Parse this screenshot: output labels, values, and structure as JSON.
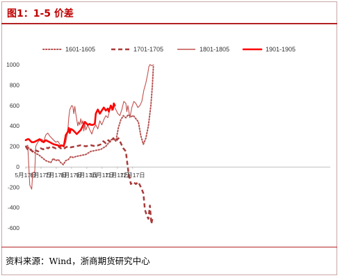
{
  "title": "图1：1-5 价差",
  "source": "资料来源：Wind，浙商期货研究中心",
  "colors": {
    "accent": "#c00000",
    "s1601": "#b5504f",
    "s1701": "#a83a3a",
    "s1801": "#c0504d",
    "s1901": "#ff0000"
  },
  "chart_data": {
    "type": "line",
    "title": "",
    "xlabel": "",
    "ylabel": "",
    "ylim": [
      -600,
      1000
    ],
    "yticks": [
      -600,
      -400,
      -200,
      0,
      200,
      400,
      600,
      800,
      1000
    ],
    "x_ticks": [
      "5月17日",
      "6月17日",
      "7月17日",
      "8月17日",
      "9月17日",
      "10月17日",
      "11月17日",
      "12月17日"
    ],
    "x_unit": "days since 5月17日",
    "legend_position": "top",
    "series": [
      {
        "name": "1601-1605",
        "style": "dotted",
        "points": [
          [
            0,
            200
          ],
          [
            5,
            190
          ],
          [
            10,
            160
          ],
          [
            15,
            150
          ],
          [
            20,
            130
          ],
          [
            25,
            120
          ],
          [
            30,
            100
          ],
          [
            35,
            80
          ],
          [
            40,
            60
          ],
          [
            45,
            50
          ],
          [
            50,
            40
          ],
          [
            55,
            80
          ],
          [
            60,
            60
          ],
          [
            65,
            70
          ],
          [
            70,
            40
          ],
          [
            75,
            20
          ],
          [
            80,
            60
          ],
          [
            85,
            70
          ],
          [
            90,
            100
          ],
          [
            95,
            90
          ],
          [
            100,
            100
          ],
          [
            110,
            110
          ],
          [
            120,
            120
          ],
          [
            130,
            150
          ],
          [
            140,
            160
          ],
          [
            150,
            170
          ],
          [
            160,
            200
          ],
          [
            170,
            260
          ],
          [
            175,
            280
          ],
          [
            180,
            250
          ],
          [
            185,
            380
          ],
          [
            190,
            460
          ],
          [
            195,
            500
          ],
          [
            200,
            480
          ],
          [
            205,
            510
          ],
          [
            210,
            490
          ],
          [
            215,
            500
          ],
          [
            220,
            470
          ],
          [
            225,
            440
          ],
          [
            230,
            300
          ],
          [
            235,
            220
          ],
          [
            240,
            280
          ],
          [
            245,
            400
          ],
          [
            250,
            600
          ],
          [
            253,
            800
          ],
          [
            255,
            980
          ]
        ]
      },
      {
        "name": "1701-1705",
        "style": "dashed",
        "points": [
          [
            0,
            200
          ],
          [
            5,
            160
          ],
          [
            10,
            170
          ],
          [
            15,
            140
          ],
          [
            20,
            160
          ],
          [
            25,
            150
          ],
          [
            30,
            180
          ],
          [
            35,
            170
          ],
          [
            40,
            190
          ],
          [
            45,
            180
          ],
          [
            50,
            200
          ],
          [
            55,
            190
          ],
          [
            60,
            180
          ],
          [
            65,
            200
          ],
          [
            70,
            180
          ],
          [
            75,
            170
          ],
          [
            80,
            190
          ],
          [
            85,
            200
          ],
          [
            90,
            190
          ],
          [
            100,
            200
          ],
          [
            110,
            210
          ],
          [
            120,
            200
          ],
          [
            130,
            210
          ],
          [
            140,
            200
          ],
          [
            150,
            220
          ],
          [
            155,
            250
          ],
          [
            160,
            230
          ],
          [
            165,
            260
          ],
          [
            170,
            240
          ],
          [
            175,
            280
          ],
          [
            180,
            250
          ],
          [
            185,
            280
          ],
          [
            190,
            230
          ],
          [
            195,
            180
          ],
          [
            200,
            150
          ],
          [
            205,
            -50
          ],
          [
            210,
            -170
          ],
          [
            215,
            -150
          ],
          [
            220,
            -170
          ],
          [
            225,
            -150
          ],
          [
            230,
            -200
          ],
          [
            235,
            -260
          ],
          [
            238,
            -420
          ],
          [
            242,
            -480
          ],
          [
            245,
            -510
          ],
          [
            248,
            -380
          ],
          [
            251,
            -560
          ],
          [
            253,
            -510
          ],
          [
            256,
            -520
          ]
        ]
      },
      {
        "name": "1801-1805",
        "style": "solid",
        "points": [
          [
            0,
            200
          ],
          [
            4,
            210
          ],
          [
            8,
            -180
          ],
          [
            12,
            -220
          ],
          [
            14,
            -60
          ],
          [
            18,
            -50
          ],
          [
            20,
            200
          ],
          [
            24,
            240
          ],
          [
            28,
            260
          ],
          [
            32,
            270
          ],
          [
            36,
            250
          ],
          [
            40,
            310
          ],
          [
            44,
            330
          ],
          [
            48,
            300
          ],
          [
            52,
            280
          ],
          [
            56,
            260
          ],
          [
            60,
            240
          ],
          [
            64,
            250
          ],
          [
            68,
            220
          ],
          [
            72,
            200
          ],
          [
            76,
            200
          ],
          [
            80,
            240
          ],
          [
            84,
            350
          ],
          [
            86,
            480
          ],
          [
            88,
            560
          ],
          [
            90,
            580
          ],
          [
            92,
            600
          ],
          [
            94,
            590
          ],
          [
            96,
            520
          ],
          [
            98,
            590
          ],
          [
            100,
            520
          ],
          [
            102,
            460
          ],
          [
            104,
            400
          ],
          [
            106,
            440
          ],
          [
            108,
            410
          ],
          [
            110,
            470
          ],
          [
            112,
            420
          ],
          [
            114,
            450
          ],
          [
            116,
            350
          ],
          [
            118,
            420
          ],
          [
            120,
            360
          ],
          [
            124,
            410
          ],
          [
            128,
            360
          ],
          [
            132,
            320
          ],
          [
            136,
            380
          ],
          [
            140,
            410
          ],
          [
            144,
            370
          ],
          [
            148,
            450
          ],
          [
            152,
            410
          ],
          [
            156,
            460
          ],
          [
            160,
            500
          ],
          [
            164,
            480
          ],
          [
            168,
            560
          ],
          [
            170,
            600
          ],
          [
            172,
            550
          ],
          [
            176,
            600
          ],
          [
            180,
            560
          ],
          [
            184,
            520
          ],
          [
            188,
            500
          ],
          [
            192,
            560
          ],
          [
            196,
            640
          ],
          [
            200,
            620
          ],
          [
            202,
            540
          ],
          [
            204,
            600
          ],
          [
            208,
            480
          ],
          [
            212,
            580
          ],
          [
            216,
            640
          ],
          [
            220,
            620
          ],
          [
            224,
            580
          ],
          [
            228,
            600
          ],
          [
            232,
            640
          ],
          [
            236,
            750
          ],
          [
            240,
            820
          ],
          [
            244,
            920
          ],
          [
            246,
            980
          ],
          [
            248,
            1000
          ],
          [
            252,
            990
          ],
          [
            256,
            1000
          ]
        ]
      },
      {
        "name": "1901-1905",
        "style": "thick",
        "points": [
          [
            0,
            260
          ],
          [
            4,
            270
          ],
          [
            6,
            270
          ],
          [
            8,
            260
          ],
          [
            10,
            250
          ],
          [
            12,
            240
          ],
          [
            16,
            240
          ],
          [
            20,
            250
          ],
          [
            24,
            260
          ],
          [
            28,
            270
          ],
          [
            32,
            250
          ],
          [
            36,
            240
          ],
          [
            40,
            260
          ],
          [
            44,
            250
          ],
          [
            48,
            240
          ],
          [
            52,
            230
          ],
          [
            56,
            220
          ],
          [
            60,
            215
          ],
          [
            64,
            210
          ],
          [
            68,
            200
          ],
          [
            72,
            210
          ],
          [
            76,
            200
          ],
          [
            80,
            310
          ],
          [
            84,
            340
          ],
          [
            86,
            380
          ],
          [
            88,
            330
          ],
          [
            90,
            370
          ],
          [
            94,
            360
          ],
          [
            98,
            340
          ],
          [
            102,
            320
          ],
          [
            106,
            340
          ],
          [
            110,
            360
          ],
          [
            114,
            400
          ],
          [
            118,
            440
          ],
          [
            120,
            430
          ],
          [
            124,
            410
          ],
          [
            128,
            420
          ],
          [
            130,
            410
          ],
          [
            134,
            410
          ],
          [
            138,
            420
          ],
          [
            140,
            520
          ],
          [
            144,
            560
          ],
          [
            148,
            520
          ],
          [
            152,
            550
          ],
          [
            156,
            580
          ],
          [
            160,
            550
          ],
          [
            164,
            570
          ],
          [
            166,
            540
          ],
          [
            170,
            600
          ],
          [
            174,
            560
          ],
          [
            176,
            620
          ],
          [
            178,
            600
          ]
        ]
      }
    ]
  }
}
